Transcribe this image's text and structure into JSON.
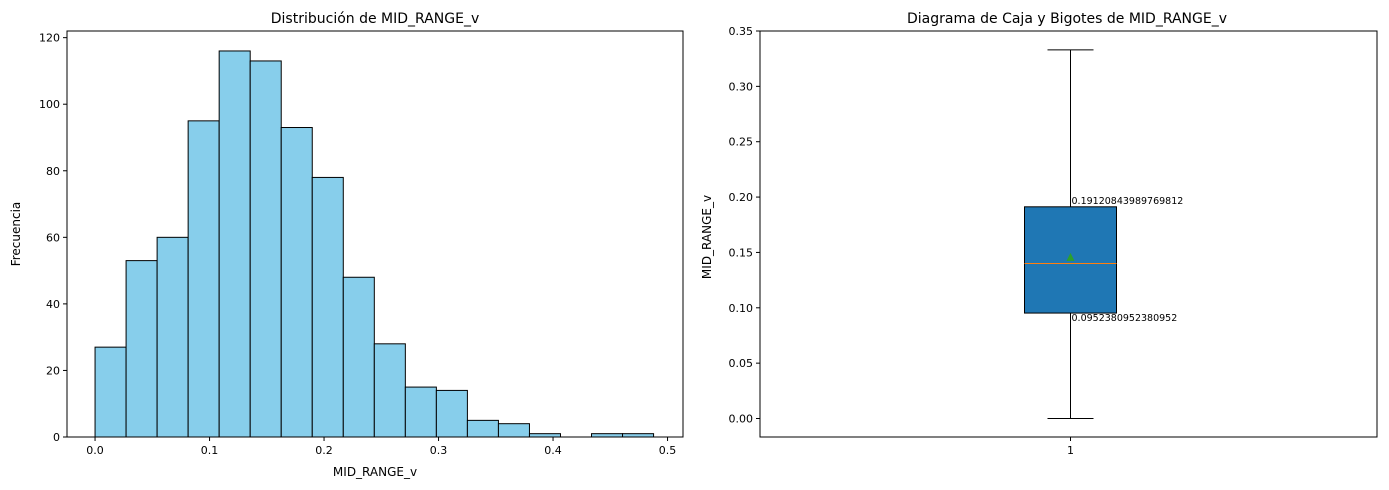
{
  "chart_data": [
    {
      "type": "bar",
      "title": "Distribución de MID_RANGE_v",
      "xlabel": "MID_RANGE_v",
      "ylabel": "Frecuencia",
      "bar_color": "#87ceeb",
      "edge_color": "#000000",
      "bin_start": 0.0,
      "bin_width": 0.0271,
      "values": [
        27,
        53,
        60,
        95,
        116,
        113,
        93,
        78,
        48,
        28,
        15,
        14,
        5,
        4,
        1,
        0,
        1,
        1
      ],
      "xlim": [
        -0.0245,
        0.5135
      ],
      "ylim": [
        0,
        122
      ],
      "xticks": [
        0.0,
        0.1,
        0.2,
        0.3,
        0.4,
        0.5
      ],
      "xtick_labels": [
        "0.0",
        "0.1",
        "0.2",
        "0.3",
        "0.4",
        "0.5"
      ],
      "yticks": [
        0,
        20,
        40,
        60,
        80,
        100,
        120
      ],
      "ytick_labels": [
        "0",
        "20",
        "40",
        "60",
        "80",
        "100",
        "120"
      ]
    },
    {
      "type": "box",
      "title": "Diagrama de Caja y Bigotes de MID_RANGE_v",
      "xlabel": "",
      "ylabel": "MID_RANGE_v",
      "box_color": "#1f77b4",
      "median_color": "#ff7f0e",
      "mean_color": "#2ca02c",
      "category": "1",
      "whisker_low": 0.0,
      "q1": 0.0952380952380952,
      "median": 0.14,
      "mean": 0.146,
      "q3": 0.19120843989769812,
      "whisker_high": 0.333,
      "annotations": [
        "0.19120843989769812",
        "0.0952380952380952"
      ],
      "ylim": [
        -0.0167,
        0.35
      ],
      "yticks": [
        0.0,
        0.05,
        0.1,
        0.15,
        0.2,
        0.25,
        0.3,
        0.35
      ],
      "ytick_labels": [
        "0.00",
        "0.05",
        "0.10",
        "0.15",
        "0.20",
        "0.25",
        "0.30",
        "0.35"
      ]
    }
  ]
}
